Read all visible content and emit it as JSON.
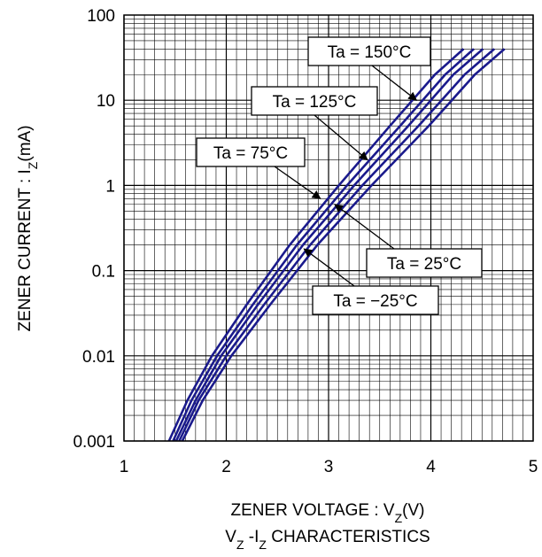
{
  "chart_data": {
    "type": "line",
    "subtitle": {
      "prefix": "V",
      "sub1": "Z",
      "mid": " -I",
      "sub2": "Z",
      "suffix": " CHARACTERISTICS"
    },
    "xlabel": {
      "prefix": "ZENER VOLTAGE : V",
      "sub": "Z",
      "suffix": "(V)"
    },
    "ylabel": {
      "prefix": "ZENER CURRENT : I",
      "sub": "Z",
      "suffix": "(mA)"
    },
    "xlim": [
      1,
      5
    ],
    "ylim": [
      0.001,
      100
    ],
    "yscale": "log",
    "grid": true,
    "x_ticks": [
      {
        "value": 1,
        "label": "1"
      },
      {
        "value": 2,
        "label": "2"
      },
      {
        "value": 3,
        "label": "3"
      },
      {
        "value": 4,
        "label": "4"
      },
      {
        "value": 5,
        "label": "5"
      }
    ],
    "y_ticks": [
      {
        "value": 0.001,
        "label": "0.001"
      },
      {
        "value": 0.01,
        "label": "0.01"
      },
      {
        "value": 0.1,
        "label": "0.1"
      },
      {
        "value": 1,
        "label": "1"
      },
      {
        "value": 10,
        "label": "10"
      },
      {
        "value": 100,
        "label": "100"
      }
    ],
    "line_color": "#1a1a8c",
    "series": [
      {
        "name": "Ta = 150°C",
        "x": [
          1.44,
          1.62,
          1.86,
          2.2,
          2.62,
          3.1,
          3.6,
          4.04,
          4.32
        ],
        "y": [
          0.001,
          0.003,
          0.01,
          0.04,
          0.2,
          1,
          5,
          20,
          40
        ]
      },
      {
        "name": "Ta = 125°C",
        "x": [
          1.48,
          1.66,
          1.91,
          2.26,
          2.69,
          3.18,
          3.7,
          4.14,
          4.42
        ],
        "y": [
          0.001,
          0.003,
          0.01,
          0.04,
          0.2,
          1,
          5,
          20,
          40
        ]
      },
      {
        "name": "Ta = 75°C",
        "x": [
          1.51,
          1.7,
          1.95,
          2.31,
          2.75,
          3.25,
          3.78,
          4.22,
          4.51
        ],
        "y": [
          0.001,
          0.003,
          0.01,
          0.04,
          0.2,
          1,
          5,
          20,
          40
        ]
      },
      {
        "name": "Ta = 25°C",
        "x": [
          1.54,
          1.73,
          2.0,
          2.37,
          2.82,
          3.33,
          3.88,
          4.33,
          4.62
        ],
        "y": [
          0.001,
          0.003,
          0.01,
          0.04,
          0.2,
          1,
          5,
          20,
          40
        ]
      },
      {
        "name": "Ta = −25°C",
        "x": [
          1.57,
          1.77,
          2.05,
          2.43,
          2.89,
          3.42,
          3.98,
          4.43,
          4.72
        ],
        "y": [
          0.001,
          0.003,
          0.01,
          0.04,
          0.2,
          1,
          5,
          20,
          40
        ]
      }
    ],
    "annotations": [
      {
        "label": "Ta = 150°C",
        "series": 0,
        "arrow_to": {
          "x": 3.86,
          "y": 10
        }
      },
      {
        "label": "Ta = 125°C",
        "series": 1,
        "arrow_to": {
          "x": 3.38,
          "y": 2
        }
      },
      {
        "label": "Ta = 75°C",
        "series": 2,
        "arrow_to": {
          "x": 2.92,
          "y": 0.7
        }
      },
      {
        "label": "Ta = 25°C",
        "series": 3,
        "arrow_to": {
          "x": 3.06,
          "y": 0.6
        }
      },
      {
        "label": "Ta = −25°C",
        "series": 4,
        "arrow_to": {
          "x": 2.76,
          "y": 0.18
        }
      }
    ]
  }
}
